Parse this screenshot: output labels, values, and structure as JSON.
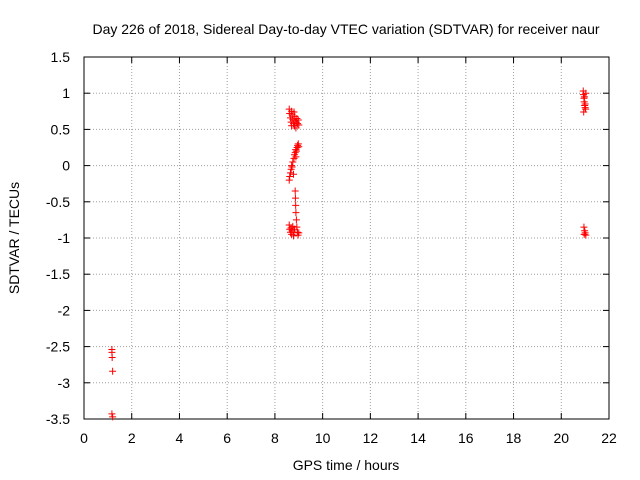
{
  "chart_data": {
    "type": "scatter",
    "title": "Day 226 of 2018, Sidereal Day-to-day VTEC variation (SDTVAR) for receiver naur",
    "xlabel": "GPS time / hours",
    "ylabel": "SDTVAR / TECUs",
    "xlim": [
      0,
      22
    ],
    "ylim": [
      -3.5,
      1.5
    ],
    "xticks": [
      0,
      2,
      4,
      6,
      8,
      10,
      12,
      14,
      16,
      18,
      20,
      22
    ],
    "xtick_labels": [
      "0",
      "2",
      "4",
      "6",
      "8",
      "10",
      "12",
      "14",
      "16",
      "18",
      "20",
      "22"
    ],
    "yticks": [
      -3.5,
      -3,
      -2.5,
      -2,
      -1.5,
      -1,
      -0.5,
      0,
      0.5,
      1,
      1.5
    ],
    "ytick_labels": [
      "-3.5",
      "-3",
      "-2.5",
      "-2",
      "-1.5",
      "-1",
      "-0.5",
      "0",
      "0.5",
      "1",
      "1.5"
    ],
    "grid": true,
    "marker": "+",
    "series_color": "#ff0000",
    "series": [
      {
        "name": "SDTVAR",
        "points": [
          [
            1.17,
            -2.54
          ],
          [
            1.17,
            -2.58
          ],
          [
            1.18,
            -2.65
          ],
          [
            1.2,
            -2.84
          ],
          [
            1.17,
            -3.43
          ],
          [
            1.2,
            -3.47
          ],
          [
            8.6,
            0.78
          ],
          [
            8.62,
            0.72
          ],
          [
            8.65,
            0.66
          ],
          [
            8.68,
            0.6
          ],
          [
            8.7,
            0.55
          ],
          [
            8.72,
            0.7
          ],
          [
            8.75,
            0.64
          ],
          [
            8.78,
            0.58
          ],
          [
            8.8,
            0.74
          ],
          [
            8.83,
            0.68
          ],
          [
            8.85,
            0.62
          ],
          [
            8.88,
            0.52
          ],
          [
            8.9,
            0.6
          ],
          [
            8.92,
            0.65
          ],
          [
            8.95,
            0.58
          ],
          [
            8.98,
            0.63
          ],
          [
            9.0,
            0.56
          ],
          [
            8.7,
            0.75
          ],
          [
            8.82,
            0.55
          ],
          [
            8.6,
            -0.2
          ],
          [
            8.62,
            -0.15
          ],
          [
            8.65,
            -0.1
          ],
          [
            8.68,
            -0.05
          ],
          [
            8.7,
            0.0
          ],
          [
            8.72,
            -0.02
          ],
          [
            8.75,
            0.05
          ],
          [
            8.78,
            -0.12
          ],
          [
            8.8,
            0.1
          ],
          [
            8.82,
            0.15
          ],
          [
            8.85,
            0.18
          ],
          [
            8.88,
            0.12
          ],
          [
            8.9,
            0.2
          ],
          [
            8.93,
            0.25
          ],
          [
            8.95,
            0.28
          ],
          [
            8.98,
            0.3
          ],
          [
            9.0,
            0.26
          ],
          [
            8.87,
            0.22
          ],
          [
            8.6,
            -0.82
          ],
          [
            8.62,
            -0.88
          ],
          [
            8.65,
            -0.92
          ],
          [
            8.68,
            -0.86
          ],
          [
            8.7,
            -0.95
          ],
          [
            8.72,
            -0.9
          ],
          [
            8.75,
            -0.84
          ],
          [
            8.78,
            -0.97
          ],
          [
            8.8,
            -0.92
          ],
          [
            8.82,
            -0.88
          ],
          [
            8.85,
            -0.35
          ],
          [
            8.86,
            -0.45
          ],
          [
            8.87,
            -0.55
          ],
          [
            8.88,
            -0.65
          ],
          [
            8.9,
            -0.75
          ],
          [
            8.92,
            -0.85
          ],
          [
            8.95,
            -0.92
          ],
          [
            8.97,
            -0.96
          ],
          [
            9.0,
            -0.93
          ],
          [
            20.92,
            1.03
          ],
          [
            20.93,
            0.98
          ],
          [
            20.95,
            0.93
          ],
          [
            20.96,
            0.88
          ],
          [
            20.98,
            0.83
          ],
          [
            21.0,
            0.8
          ],
          [
            21.02,
            0.78
          ],
          [
            20.94,
            0.74
          ],
          [
            21.0,
            0.85
          ],
          [
            20.97,
            0.95
          ],
          [
            21.03,
            1.0
          ],
          [
            20.95,
            -0.85
          ],
          [
            20.98,
            -0.9
          ],
          [
            21.0,
            -0.93
          ],
          [
            21.03,
            -0.96
          ],
          [
            20.96,
            -0.95
          ]
        ]
      }
    ]
  }
}
